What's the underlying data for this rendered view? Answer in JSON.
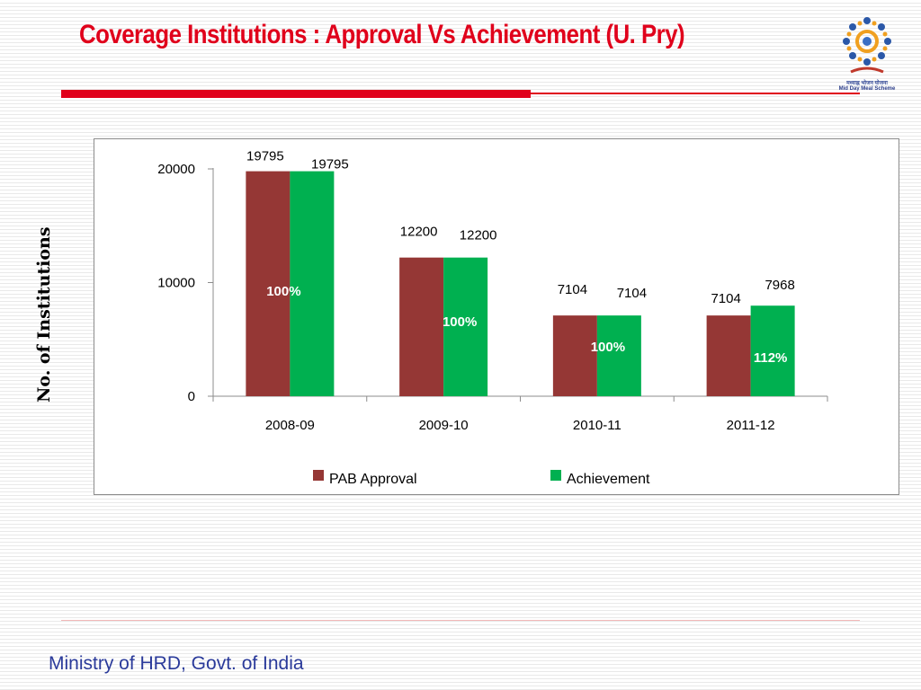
{
  "slide": {
    "title": "Coverage Institutions : Approval Vs Achievement (U. Pry)",
    "title_color": "#e0001b",
    "footer": "Ministry of HRD, Govt. of India",
    "footer_color": "#2a3a9a"
  },
  "logo": {
    "icon": "mid-day-meal-emblem",
    "text_hindi": "मध्याह्न भोजन योजना",
    "text_english": "Mid Day Meal Scheme"
  },
  "chart_data": {
    "type": "bar",
    "title": "",
    "xlabel": "",
    "ylabel": "No. of Institutions",
    "categories": [
      "2008-09",
      "2009-10",
      "2010-11",
      "2011-12"
    ],
    "series": [
      {
        "name": "PAB Approval",
        "color": "#953735",
        "values": [
          19795,
          12200,
          7104,
          7104
        ],
        "labels": [
          "19795",
          "12200",
          "7104",
          "7104"
        ]
      },
      {
        "name": "Achievement",
        "color": "#00b050",
        "values": [
          19795,
          12200,
          7104,
          7968
        ],
        "labels": [
          "19795",
          "12200",
          "7104",
          "7968"
        ]
      }
    ],
    "percent_labels": [
      "100%",
      "100%",
      "100%",
      "112%"
    ],
    "y_ticks": [
      "0",
      "10000",
      "20000"
    ],
    "ylim": [
      0,
      20000
    ],
    "grid": false,
    "legend_position": "bottom"
  }
}
